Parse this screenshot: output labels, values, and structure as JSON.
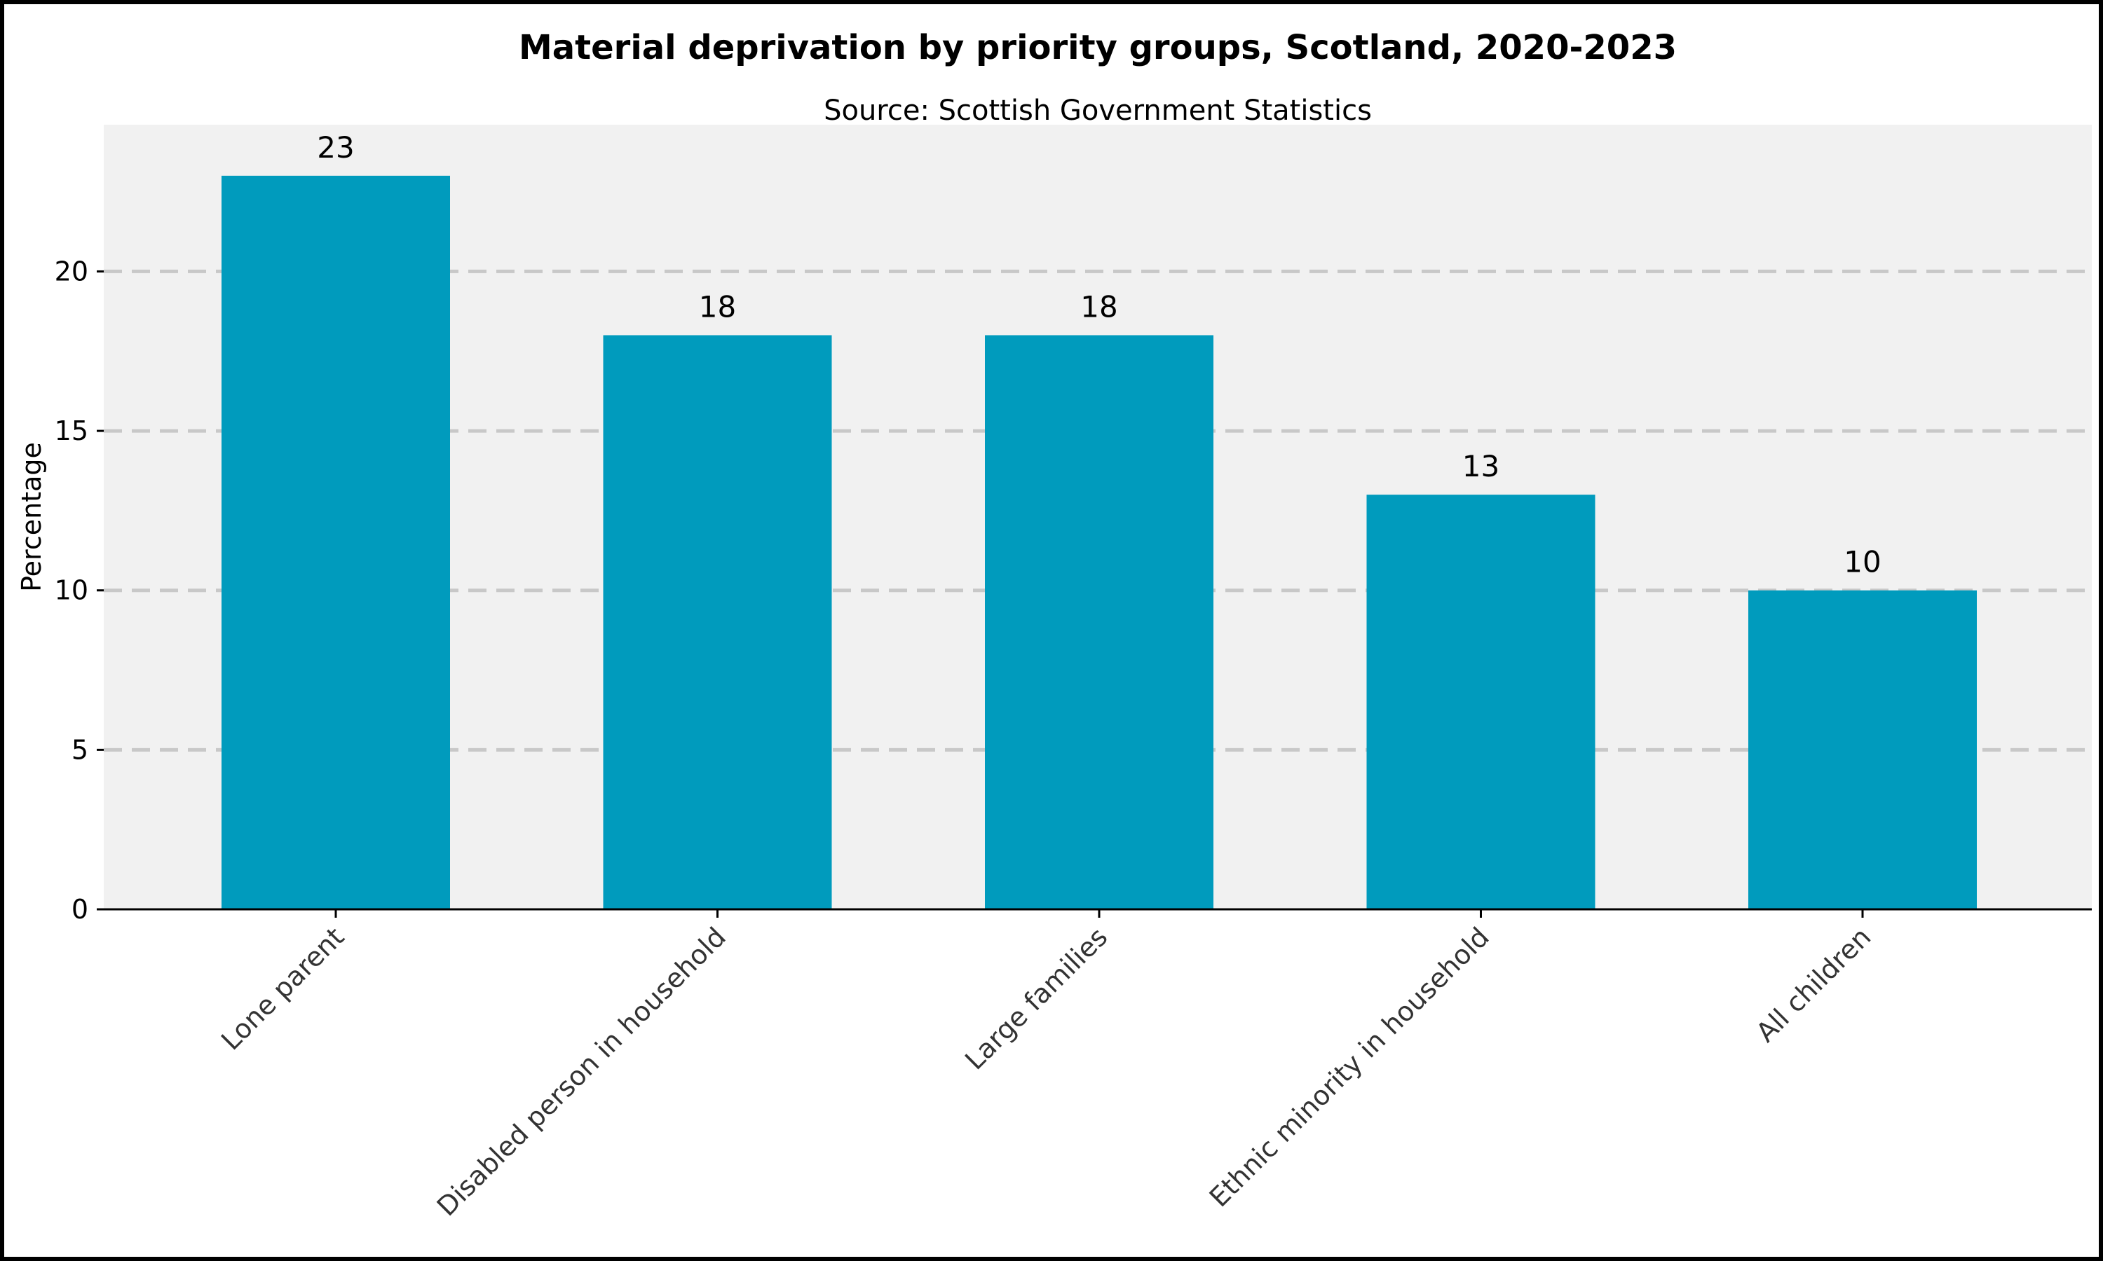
{
  "chart_data": {
    "type": "bar",
    "title": "Material deprivation by priority groups, Scotland, 2020-2023",
    "subtitle": "Source: Scottish Government Statistics",
    "xlabel": "",
    "ylabel": "Percentage",
    "categories": [
      "Lone parent",
      "Disabled person in household",
      "Large families",
      "Ethnic minority in household",
      "All children"
    ],
    "values": [
      23,
      18,
      18,
      13,
      10
    ],
    "data_labels": [
      "23",
      "18",
      "18",
      "13",
      "10"
    ],
    "ylim": [
      0,
      24.6
    ],
    "yticks": [
      0,
      5,
      10,
      15,
      20
    ],
    "ytick_labels": [
      "0",
      "5",
      "10",
      "15",
      "20"
    ],
    "grid": "y dashed",
    "legend": "none",
    "colors": {
      "bar": "#009bbd",
      "plot_background": "#f1f1f1",
      "grid": "#c8c8c8",
      "axis": "#000000"
    }
  }
}
